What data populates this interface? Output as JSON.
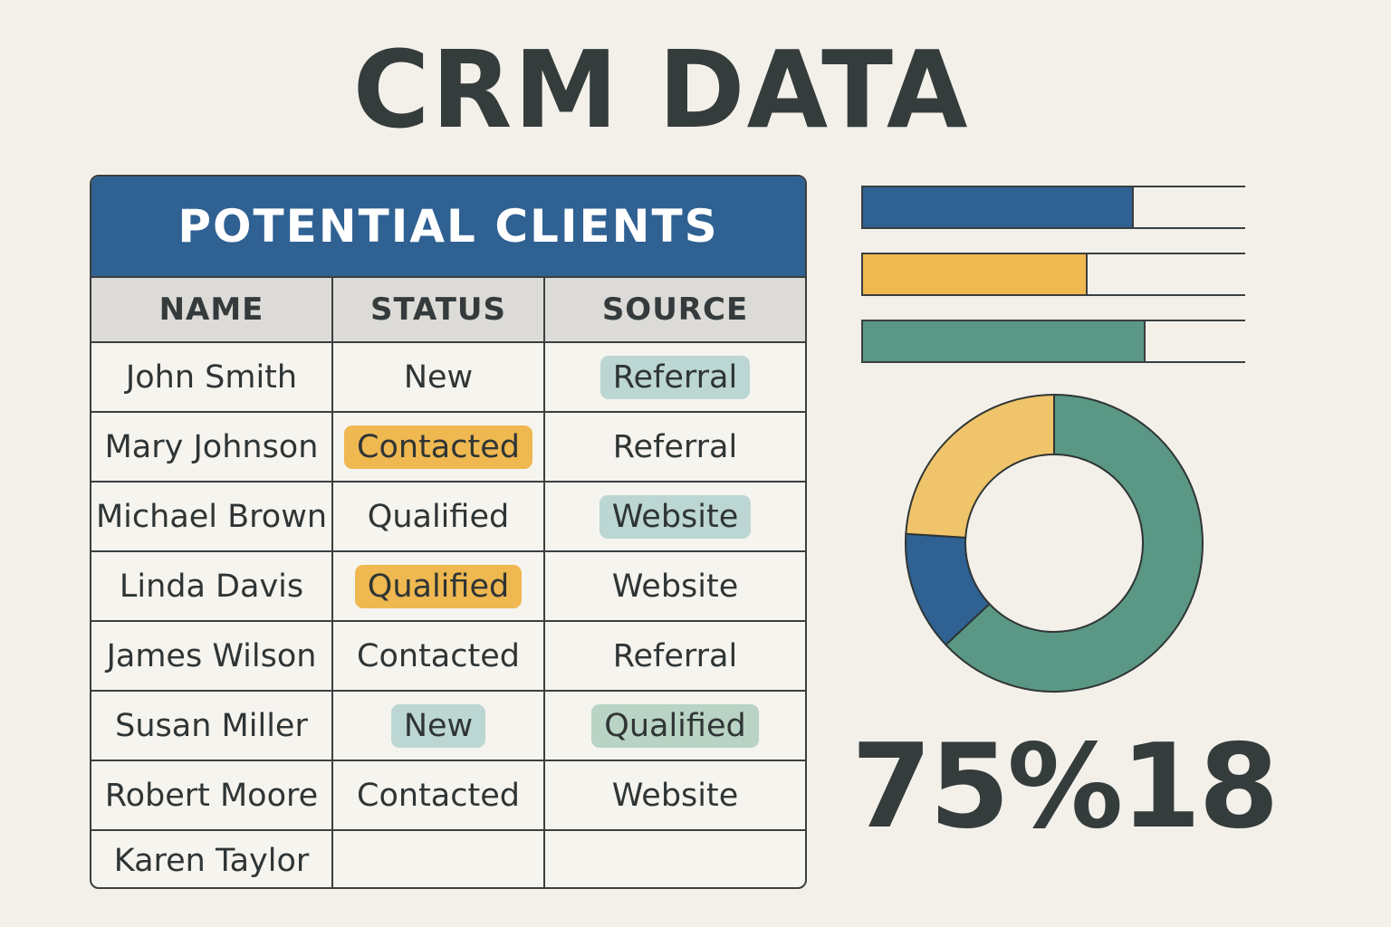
{
  "page": {
    "title": "CRM DATA"
  },
  "table": {
    "title": "POTENTIAL CLIENTS",
    "columns": [
      "NAME",
      "STATUS",
      "SOURCE"
    ],
    "rows": [
      {
        "name": "John Smith",
        "status": "New",
        "source": "Referral",
        "status_pill": "",
        "source_pill": "teal"
      },
      {
        "name": "Mary Johnson",
        "status": "Contacted",
        "source": "Referral",
        "status_pill": "yellow",
        "source_pill": ""
      },
      {
        "name": "Michael Brown",
        "status": "Qualified",
        "source": "Website",
        "status_pill": "",
        "source_pill": "teal"
      },
      {
        "name": "Linda Davis",
        "status": "Qualified",
        "source": "Website",
        "status_pill": "yellow",
        "source_pill": ""
      },
      {
        "name": "James Wilson",
        "status": "Contacted",
        "source": "Referral",
        "status_pill": "",
        "source_pill": ""
      },
      {
        "name": "Susan Miller",
        "status": "New",
        "source": "Qualified",
        "status_pill": "teal",
        "source_pill": "green"
      },
      {
        "name": "Robert Moore",
        "status": "Contacted",
        "source": "Website",
        "status_pill": "",
        "source_pill": ""
      },
      {
        "name": "Karen Taylor",
        "status": "",
        "source": "",
        "status_pill": "",
        "source_pill": ""
      }
    ]
  },
  "chart_data": [
    {
      "type": "bar",
      "orientation": "horizontal",
      "values": [
        0.71,
        0.59,
        0.74
      ],
      "colors": [
        "#2f6193",
        "#efb850",
        "#5a9784"
      ]
    },
    {
      "type": "pie",
      "variant": "donut",
      "values": [
        63,
        13,
        24
      ],
      "colors": [
        "#5a9784",
        "#2f6193",
        "#efc46a"
      ]
    }
  ],
  "stats": {
    "percent": "75%",
    "count": "18"
  },
  "colors": {
    "background": "#f3f0ea",
    "header_blue": "#2f6193",
    "accent_yellow": "#efb850",
    "accent_teal": "#bcd6d3",
    "accent_green": "#5a9784"
  }
}
